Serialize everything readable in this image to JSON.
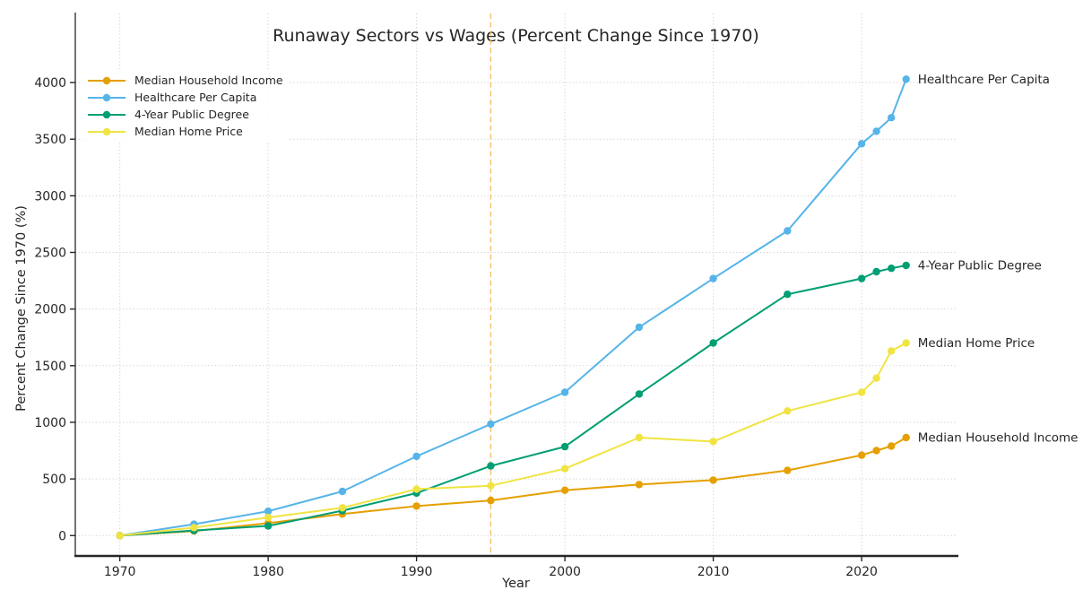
{
  "chart_data": {
    "type": "line",
    "title": "Runaway Sectors vs Wages (Percent Change Since 1970)",
    "xlabel": "Year",
    "ylabel": "Percent Change Since 1970 (%)",
    "x": [
      1970,
      1975,
      1980,
      1985,
      1990,
      1995,
      2000,
      2005,
      2010,
      2015,
      2020,
      2021,
      2022,
      2023
    ],
    "series": [
      {
        "name": "Median Household Income",
        "color": "#E69F00",
        "values": [
          0,
          40,
          110,
          190,
          260,
          310,
          400,
          450,
          490,
          575,
          710,
          750,
          790,
          865
        ]
      },
      {
        "name": "Healthcare Per Capita",
        "color": "#56B4E9",
        "values": [
          0,
          100,
          215,
          390,
          700,
          985,
          1265,
          1840,
          2270,
          2690,
          3460,
          3570,
          3690,
          4030
        ]
      },
      {
        "name": "4-Year Public Degree",
        "color": "#009E73",
        "values": [
          0,
          45,
          85,
          220,
          375,
          615,
          785,
          1250,
          1700,
          2130,
          2270,
          2330,
          2360,
          2385
        ]
      },
      {
        "name": "Median Home Price",
        "color": "#F0E442",
        "values": [
          0,
          70,
          160,
          245,
          410,
          440,
          590,
          865,
          830,
          1100,
          1265,
          1390,
          1630,
          1700
        ]
      }
    ],
    "xticks": [
      1970,
      1980,
      1990,
      2000,
      2010,
      2020
    ],
    "yticks": [
      0,
      500,
      1000,
      1500,
      2000,
      2500,
      3000,
      3500,
      4000
    ],
    "xlim": [
      1967,
      2026.4
    ],
    "ylim": [
      -180,
      4610
    ],
    "grid": true,
    "grid_style": "dotted",
    "legend_position": "upper left",
    "right_edge_labels": true,
    "vline": {
      "x": 1995,
      "color": "#EFC36A",
      "style": "dashed"
    }
  }
}
